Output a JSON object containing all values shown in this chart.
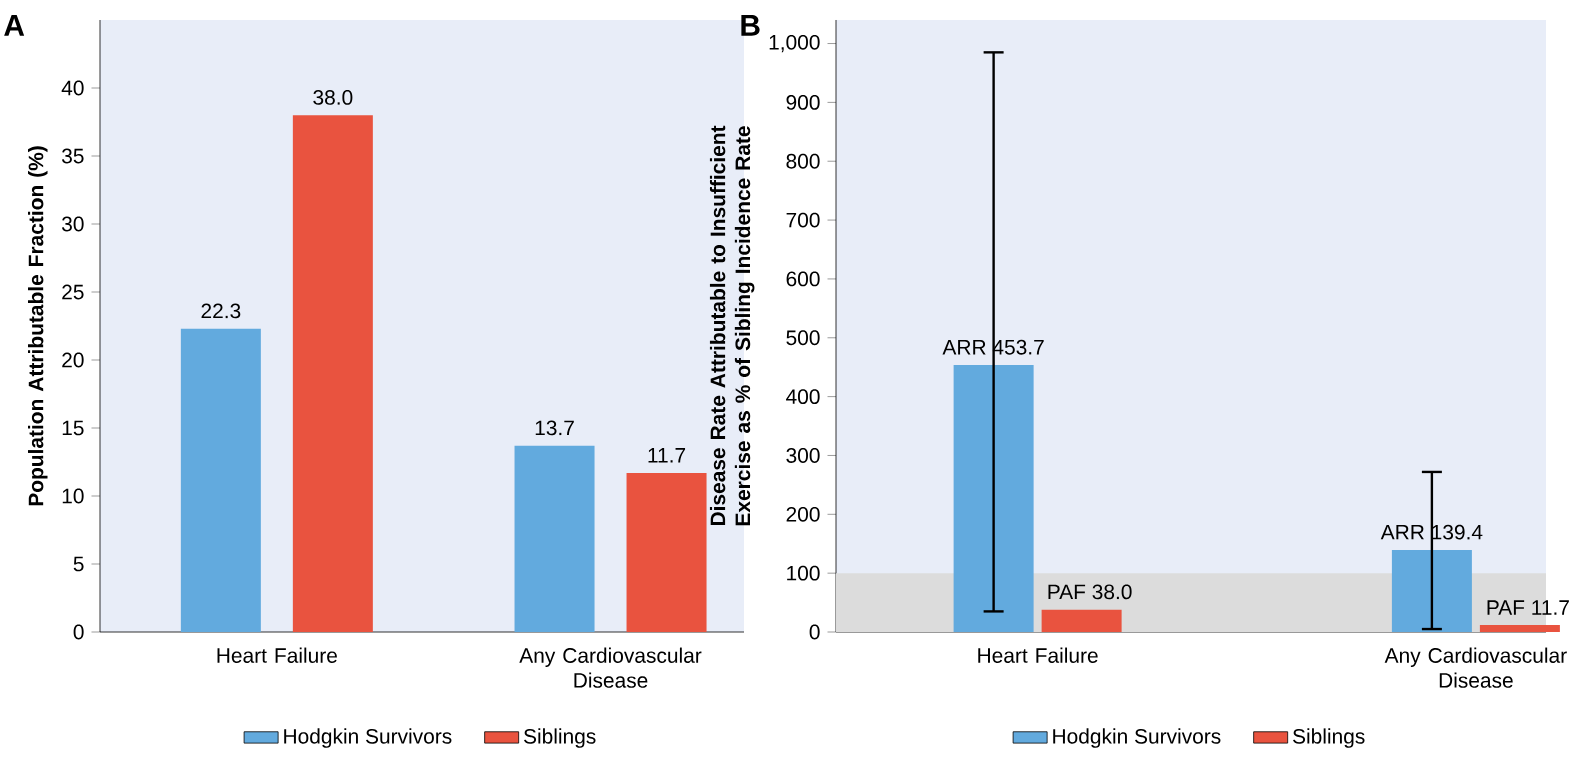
{
  "chart_data": [
    {
      "type": "bar",
      "title": "A",
      "ylabel": "Population Attributable Fraction (%)",
      "categories": [
        "Heart Failure",
        "Any Cardiovascular Disease"
      ],
      "series": [
        {
          "name": "Hodgkin Survivors",
          "color": "#62aade",
          "values": [
            22.3,
            13.7
          ],
          "value_labels": [
            "22.3",
            "13.7"
          ]
        },
        {
          "name": "Siblings",
          "color": "#e9533f",
          "values": [
            38.0,
            11.7
          ],
          "value_labels": [
            "38.0",
            "11.7"
          ]
        }
      ],
      "ylim": [
        0,
        45
      ],
      "yticks": [
        0,
        5,
        10,
        15,
        20,
        25,
        30,
        35,
        40
      ],
      "legend": "bottom"
    },
    {
      "type": "bar",
      "title": "B",
      "ylabel": "Disease Rate Attributable to Insufficient Exercise as % of Sibling Incidence Rate",
      "categories": [
        "Heart Failure",
        "Any Cardiovascular Disease"
      ],
      "series": [
        {
          "name": "Hodgkin Survivors",
          "color": "#62aade",
          "values": [
            453.7,
            139.4
          ],
          "value_labels": [
            "ARR 453.7",
            "ARR 139.4"
          ],
          "errors": [
            [
              35,
              985
            ],
            [
              5,
              272
            ]
          ]
        },
        {
          "name": "Siblings",
          "color": "#e9533f",
          "values": [
            38.0,
            11.7
          ],
          "value_labels": [
            "PAF 38.0",
            "PAF 11.7"
          ]
        }
      ],
      "bands": [
        {
          "axis": "y",
          "from": 0,
          "to": 100,
          "color": "#dcdcdc"
        }
      ],
      "ylim": [
        0,
        1040
      ],
      "yticks": [
        0,
        100,
        200,
        300,
        400,
        500,
        600,
        700,
        800,
        900,
        {
          "value": 1000,
          "label": "1,000"
        }
      ],
      "legend": "bottom"
    }
  ]
}
